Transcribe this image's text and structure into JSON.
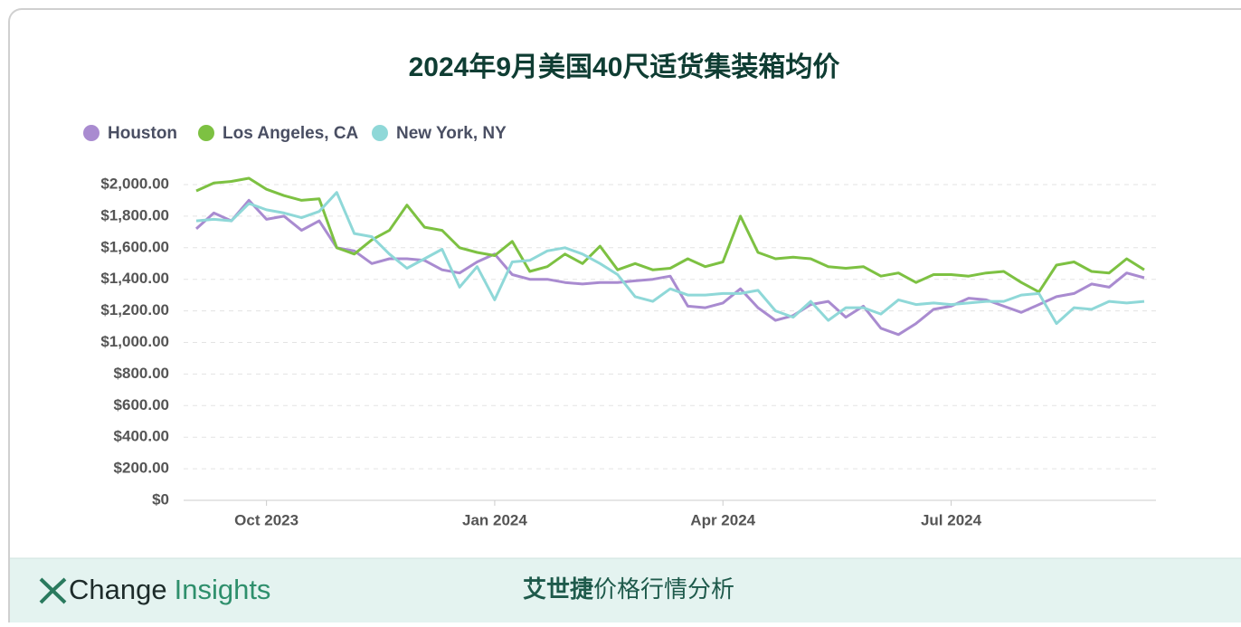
{
  "chart_data": {
    "type": "line",
    "title": "2024年9月美国40尺适货集装箱均价",
    "categories": [
      null,
      null,
      null,
      null,
      "Oct 2023",
      null,
      null,
      null,
      null,
      null,
      null,
      null,
      null,
      null,
      null,
      null,
      null,
      "Jan 2024",
      null,
      null,
      null,
      null,
      null,
      null,
      null,
      null,
      null,
      null,
      null,
      null,
      "Apr 2024",
      null,
      null,
      null,
      null,
      null,
      null,
      null,
      null,
      null,
      null,
      null,
      null,
      "Jul 2024",
      null,
      null,
      null,
      null,
      null,
      null,
      null,
      null,
      null,
      null,
      null
    ],
    "series": [
      {
        "name": "Houston",
        "color": "#a98bd0",
        "values": [
          1720,
          1820,
          1770,
          1900,
          1780,
          1800,
          1710,
          1770,
          1600,
          1580,
          1500,
          1530,
          1530,
          1520,
          1460,
          1440,
          1510,
          1560,
          1430,
          1400,
          1400,
          1380,
          1370,
          1380,
          1380,
          1390,
          1400,
          1420,
          1230,
          1220,
          1250,
          1340,
          1220,
          1140,
          1170,
          1240,
          1260,
          1160,
          1230,
          1090,
          1050,
          1120,
          1210,
          1230,
          1280,
          1270,
          1230,
          1190,
          1240,
          1290,
          1310,
          1370,
          1350,
          1440,
          1410
        ]
      },
      {
        "name": "Los Angeles, CA",
        "color": "#7dc142",
        "values": [
          1960,
          2010,
          2020,
          2040,
          1970,
          1930,
          1900,
          1910,
          1600,
          1560,
          1650,
          1710,
          1870,
          1730,
          1710,
          1600,
          1570,
          1550,
          1640,
          1450,
          1480,
          1560,
          1500,
          1610,
          1460,
          1500,
          1460,
          1470,
          1530,
          1480,
          1510,
          1800,
          1570,
          1530,
          1540,
          1530,
          1480,
          1470,
          1480,
          1420,
          1440,
          1380,
          1430,
          1430,
          1420,
          1440,
          1450,
          1380,
          1320,
          1490,
          1510,
          1450,
          1440,
          1530,
          1460
        ]
      },
      {
        "name": "New York, NY",
        "color": "#8fd8d8",
        "values": [
          1770,
          1780,
          1770,
          1880,
          1840,
          1820,
          1790,
          1830,
          1950,
          1690,
          1670,
          1560,
          1470,
          1530,
          1590,
          1350,
          1480,
          1270,
          1510,
          1520,
          1580,
          1600,
          1560,
          1500,
          1430,
          1290,
          1260,
          1340,
          1300,
          1300,
          1310,
          1310,
          1330,
          1200,
          1160,
          1260,
          1140,
          1220,
          1220,
          1180,
          1270,
          1240,
          1250,
          1240,
          1250,
          1260,
          1260,
          1300,
          1310,
          1120,
          1220,
          1210,
          1260,
          1250,
          1260
        ]
      }
    ],
    "ylim": [
      0,
      2000
    ],
    "yticks": [
      {
        "value": 0,
        "label": "$0"
      },
      {
        "value": 200,
        "label": "$200.00"
      },
      {
        "value": 400,
        "label": "$400.00"
      },
      {
        "value": 600,
        "label": "$600.00"
      },
      {
        "value": 800,
        "label": "$800.00"
      },
      {
        "value": 1000,
        "label": "$1,000.00"
      },
      {
        "value": 1200,
        "label": "$1,200.00"
      },
      {
        "value": 1400,
        "label": "$1,400.00"
      },
      {
        "value": 1600,
        "label": "$1,600.00"
      },
      {
        "value": 1800,
        "label": "$1,800.00"
      },
      {
        "value": 2000,
        "label": "$2,000.00"
      }
    ],
    "grid": true
  },
  "footer": {
    "logo_a": "Change",
    "logo_b": "Insights",
    "brand_bold": "艾世捷",
    "brand_rest": "价格行情分析"
  }
}
